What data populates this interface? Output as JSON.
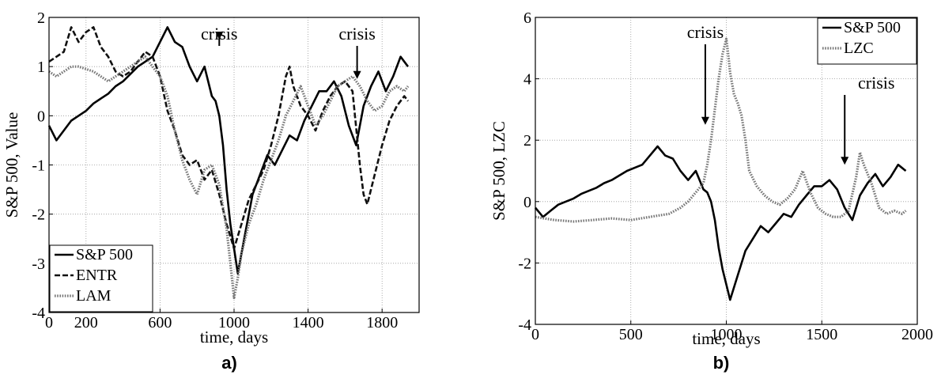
{
  "chart_data": [
    {
      "type": "line",
      "panel_label": "a)",
      "xlabel": "time, days",
      "ylabel": "S&P 500, Value",
      "xlim": [
        0,
        2000
      ],
      "ylim": [
        -4,
        2
      ],
      "xticks": [
        0,
        200,
        600,
        1000,
        1400,
        1800
      ],
      "yticks": [
        -4,
        -3,
        -2,
        -1,
        0,
        1,
        2
      ],
      "grid": true,
      "legend": {
        "placement": "bottom-left",
        "entries": [
          "S&P 500",
          "ENTR",
          "LAM"
        ]
      },
      "annotations": [
        {
          "text": "crisis",
          "x": 920,
          "arrow_tip_y": 1.55
        },
        {
          "text": "crisis",
          "x": 1665,
          "arrow_tip_y": 0.75
        }
      ],
      "series": [
        {
          "name": "S&P 500",
          "style": "solid",
          "x": [
            0,
            40,
            80,
            120,
            160,
            200,
            240,
            280,
            320,
            360,
            400,
            440,
            480,
            520,
            560,
            600,
            640,
            680,
            720,
            760,
            800,
            840,
            880,
            900,
            920,
            940,
            960,
            980,
            1000,
            1020,
            1060,
            1100,
            1140,
            1180,
            1220,
            1260,
            1300,
            1340,
            1380,
            1420,
            1460,
            1500,
            1540,
            1580,
            1620,
            1660,
            1700,
            1740,
            1780,
            1820,
            1860,
            1900,
            1940
          ],
          "y": [
            -0.2,
            -0.5,
            -0.3,
            -0.1,
            0.0,
            0.1,
            0.25,
            0.35,
            0.45,
            0.6,
            0.7,
            0.85,
            1.0,
            1.1,
            1.2,
            1.5,
            1.8,
            1.5,
            1.4,
            1.0,
            0.7,
            1.0,
            0.4,
            0.3,
            0.0,
            -0.6,
            -1.5,
            -2.2,
            -2.7,
            -3.2,
            -2.4,
            -1.6,
            -1.2,
            -0.8,
            -1.0,
            -0.7,
            -0.4,
            -0.5,
            -0.1,
            0.2,
            0.5,
            0.5,
            0.7,
            0.4,
            -0.2,
            -0.6,
            0.2,
            0.6,
            0.9,
            0.5,
            0.8,
            1.2,
            1.0
          ]
        },
        {
          "name": "ENTR",
          "style": "dashed",
          "x": [
            0,
            40,
            80,
            120,
            160,
            200,
            240,
            280,
            320,
            360,
            400,
            440,
            480,
            520,
            560,
            600,
            640,
            680,
            720,
            760,
            800,
            840,
            880,
            920,
            960,
            1000,
            1040,
            1080,
            1120,
            1160,
            1200,
            1240,
            1280,
            1300,
            1320,
            1360,
            1400,
            1440,
            1480,
            1520,
            1560,
            1600,
            1640,
            1680,
            1700,
            1720,
            1760,
            1800,
            1840,
            1880,
            1920,
            1940
          ],
          "y": [
            1.1,
            1.2,
            1.3,
            1.8,
            1.5,
            1.7,
            1.8,
            1.4,
            1.2,
            0.9,
            0.8,
            0.9,
            1.1,
            1.3,
            1.2,
            0.8,
            0.1,
            -0.3,
            -0.8,
            -1.0,
            -0.9,
            -1.3,
            -1.1,
            -1.6,
            -2.2,
            -2.7,
            -2.2,
            -1.7,
            -1.4,
            -1.1,
            -0.6,
            0.0,
            0.8,
            1.0,
            0.6,
            0.2,
            0.0,
            -0.3,
            0.1,
            0.4,
            0.6,
            0.7,
            0.5,
            -1.0,
            -1.6,
            -1.8,
            -1.2,
            -0.6,
            -0.1,
            0.2,
            0.4,
            0.3
          ]
        },
        {
          "name": "LAM",
          "style": "dotted",
          "x": [
            0,
            40,
            80,
            120,
            160,
            200,
            240,
            280,
            320,
            360,
            400,
            440,
            480,
            520,
            560,
            600,
            640,
            680,
            720,
            760,
            800,
            840,
            880,
            920,
            960,
            1000,
            1020,
            1040,
            1080,
            1120,
            1160,
            1200,
            1240,
            1280,
            1320,
            1360,
            1400,
            1440,
            1480,
            1520,
            1560,
            1600,
            1640,
            1680,
            1720,
            1760,
            1800,
            1840,
            1880,
            1920,
            1940
          ],
          "y": [
            0.9,
            0.8,
            0.9,
            1.0,
            1.0,
            0.95,
            0.9,
            0.8,
            0.7,
            0.8,
            0.9,
            1.0,
            1.1,
            1.2,
            1.0,
            0.8,
            0.4,
            -0.3,
            -0.9,
            -1.3,
            -1.6,
            -1.1,
            -1.0,
            -1.4,
            -2.3,
            -3.7,
            -3.3,
            -2.8,
            -2.2,
            -1.8,
            -1.3,
            -0.9,
            -0.5,
            0.0,
            0.3,
            0.6,
            0.2,
            -0.2,
            0.0,
            0.3,
            0.6,
            0.7,
            0.8,
            0.6,
            0.3,
            0.1,
            0.2,
            0.5,
            0.6,
            0.5,
            0.6
          ]
        }
      ]
    },
    {
      "type": "line",
      "panel_label": "b)",
      "xlabel": "time, days",
      "ylabel": "S&P 500, LZC",
      "xlim": [
        0,
        2000
      ],
      "ylim": [
        -4,
        6
      ],
      "xticks": [
        0,
        500,
        1000,
        1500,
        2000
      ],
      "yticks": [
        -4,
        -2,
        0,
        2,
        4,
        6
      ],
      "grid": true,
      "legend": {
        "placement": "top-right",
        "entries": [
          "S&P 500",
          "LZC"
        ]
      },
      "annotations": [
        {
          "text": "crisis",
          "x": 890,
          "arrow_tip_y": 2.5
        },
        {
          "text": "crisis",
          "x": 1620,
          "arrow_tip_y": 1.2
        }
      ],
      "series": [
        {
          "name": "S&P 500",
          "style": "solid",
          "x": [
            0,
            40,
            80,
            120,
            160,
            200,
            240,
            280,
            320,
            360,
            400,
            440,
            480,
            520,
            560,
            600,
            640,
            680,
            720,
            760,
            800,
            840,
            880,
            900,
            920,
            940,
            960,
            980,
            1000,
            1020,
            1060,
            1100,
            1140,
            1180,
            1220,
            1260,
            1300,
            1340,
            1380,
            1420,
            1460,
            1500,
            1540,
            1580,
            1620,
            1660,
            1700,
            1740,
            1780,
            1820,
            1860,
            1900,
            1940
          ],
          "y": [
            -0.2,
            -0.5,
            -0.3,
            -0.1,
            0.0,
            0.1,
            0.25,
            0.35,
            0.45,
            0.6,
            0.7,
            0.85,
            1.0,
            1.1,
            1.2,
            1.5,
            1.8,
            1.5,
            1.4,
            1.0,
            0.7,
            1.0,
            0.4,
            0.3,
            0.0,
            -0.6,
            -1.5,
            -2.2,
            -2.7,
            -3.2,
            -2.4,
            -1.6,
            -1.2,
            -0.8,
            -1.0,
            -0.7,
            -0.4,
            -0.5,
            -0.1,
            0.2,
            0.5,
            0.5,
            0.7,
            0.4,
            -0.2,
            -0.6,
            0.2,
            0.6,
            0.9,
            0.5,
            0.8,
            1.2,
            1.0
          ]
        },
        {
          "name": "LZC",
          "style": "dotted",
          "x": [
            0,
            100,
            200,
            300,
            400,
            500,
            600,
            700,
            760,
            800,
            840,
            880,
            900,
            920,
            940,
            960,
            980,
            1000,
            1010,
            1020,
            1040,
            1060,
            1080,
            1100,
            1120,
            1160,
            1200,
            1240,
            1280,
            1320,
            1360,
            1400,
            1440,
            1480,
            1520,
            1560,
            1600,
            1640,
            1680,
            1700,
            1720,
            1760,
            1800,
            1840,
            1880,
            1920,
            1940
          ],
          "y": [
            -0.5,
            -0.6,
            -0.65,
            -0.6,
            -0.55,
            -0.6,
            -0.5,
            -0.4,
            -0.2,
            0.0,
            0.3,
            0.6,
            1.2,
            2.0,
            3.0,
            4.0,
            4.8,
            5.3,
            4.8,
            4.2,
            3.5,
            3.2,
            2.8,
            2.0,
            1.0,
            0.5,
            0.2,
            0.0,
            -0.1,
            0.1,
            0.4,
            1.0,
            0.3,
            -0.2,
            -0.4,
            -0.5,
            -0.5,
            -0.3,
            0.8,
            1.6,
            1.2,
            0.6,
            -0.2,
            -0.4,
            -0.3,
            -0.4,
            -0.3
          ]
        }
      ]
    }
  ]
}
